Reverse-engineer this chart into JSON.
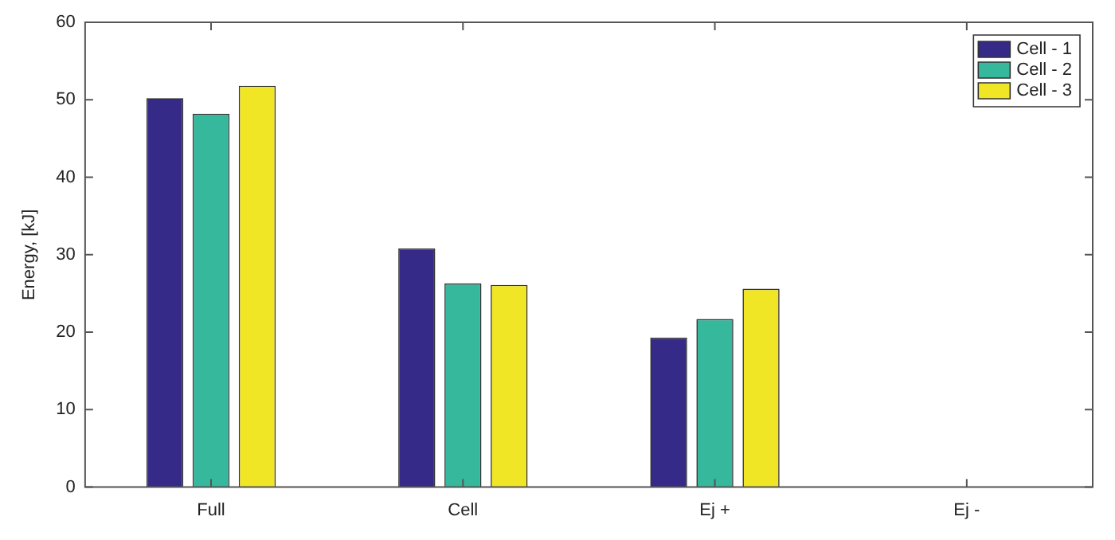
{
  "chart_data": {
    "type": "bar",
    "ylabel": "Energy, [kJ]",
    "categories": [
      "Full",
      "Cell",
      "Ej +",
      "Ej -"
    ],
    "series": [
      {
        "name": "Cell - 1",
        "color": "#352a87",
        "values": [
          50.2,
          30.8,
          19.3,
          0
        ]
      },
      {
        "name": "Cell - 2",
        "color": "#35b89c",
        "values": [
          48.2,
          26.3,
          21.7,
          0
        ]
      },
      {
        "name": "Cell - 3",
        "color": "#f0e626",
        "values": [
          51.8,
          26.1,
          25.6,
          0
        ]
      }
    ],
    "ylim": [
      0,
      60
    ],
    "yticks": [
      0,
      10,
      20,
      30,
      40,
      50,
      60
    ],
    "grid": false,
    "legend": "top right"
  }
}
